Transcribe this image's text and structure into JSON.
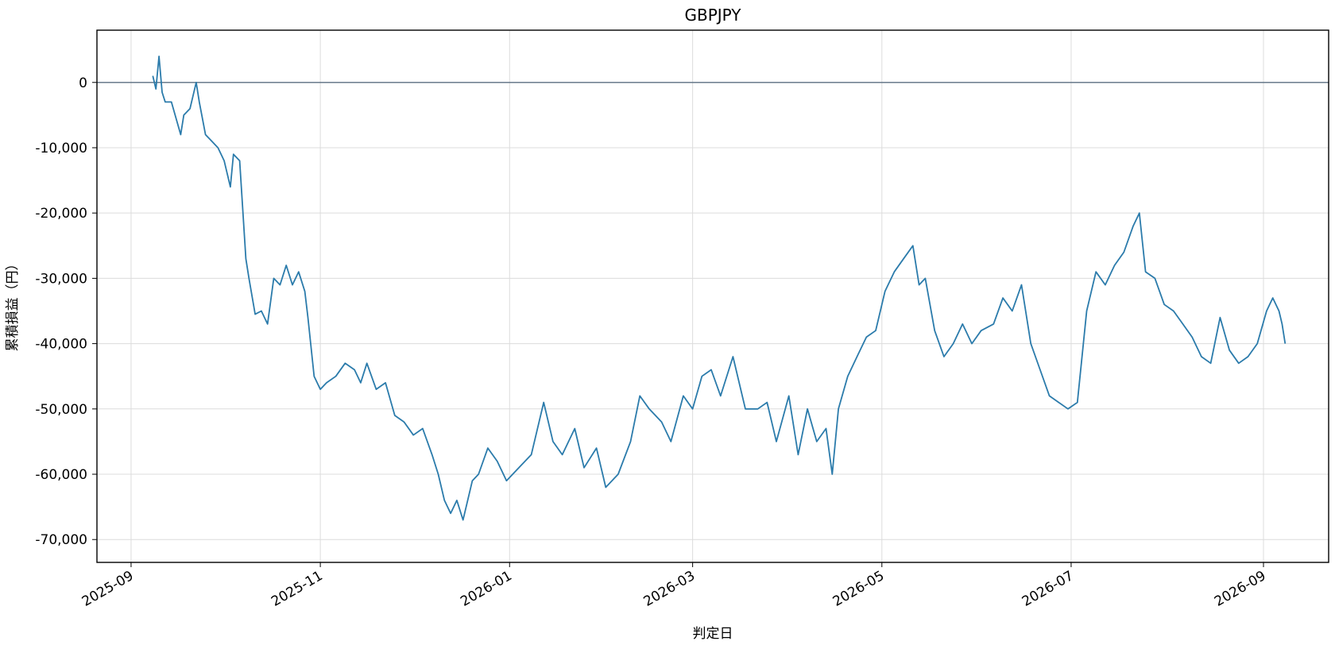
{
  "chart_data": {
    "type": "line",
    "title": "GBPJPY",
    "xlabel": "判定日",
    "ylabel": "累積損益（円）",
    "x_range": [
      "2025-08-21",
      "2026-09-22"
    ],
    "ylim": [
      -73500,
      8000
    ],
    "x_ticks": [
      "2025-09",
      "2025-11",
      "2026-01",
      "2026-03",
      "2026-05",
      "2026-07",
      "2026-09"
    ],
    "y_ticks": [
      0,
      -10000,
      -20000,
      -30000,
      -40000,
      -50000,
      -60000,
      -70000
    ],
    "y_tick_labels": [
      "0",
      "-10,000",
      "-20,000",
      "-30,000",
      "-40,000",
      "-50,000",
      "-60,000",
      "-70,000"
    ],
    "grid": true,
    "reference_line_y": 0,
    "colors": {
      "series": "#2b7bab",
      "zero_line": "#5b6f82",
      "grid": "#dcdcdc"
    },
    "series": [
      {
        "x": [
          "2025-09-08",
          "2025-09-09",
          "2025-09-10",
          "2025-09-11",
          "2025-09-12",
          "2025-09-14",
          "2025-09-17",
          "2025-09-18",
          "2025-09-20",
          "2025-09-22",
          "2025-09-23",
          "2025-09-25",
          "2025-09-27",
          "2025-09-29",
          "2025-10-01",
          "2025-10-03",
          "2025-10-04",
          "2025-10-06",
          "2025-10-08",
          "2025-10-09",
          "2025-10-11",
          "2025-10-13",
          "2025-10-15",
          "2025-10-17",
          "2025-10-19",
          "2025-10-21",
          "2025-10-23",
          "2025-10-25",
          "2025-10-27",
          "2025-10-28",
          "2025-10-30",
          "2025-11-01",
          "2025-11-03",
          "2025-11-06",
          "2025-11-09",
          "2025-11-12",
          "2025-11-14",
          "2025-11-16",
          "2025-11-19",
          "2025-11-22",
          "2025-11-25",
          "2025-11-28",
          "2025-12-01",
          "2025-12-04",
          "2025-12-07",
          "2025-12-09",
          "2025-12-11",
          "2025-12-13",
          "2025-12-15",
          "2025-12-17",
          "2025-12-20",
          "2025-12-22",
          "2025-12-25",
          "2025-12-28",
          "2025-12-31",
          "2026-01-04",
          "2026-01-08",
          "2026-01-12",
          "2026-01-15",
          "2026-01-18",
          "2026-01-22",
          "2026-01-25",
          "2026-01-29",
          "2026-02-01",
          "2026-02-05",
          "2026-02-09",
          "2026-02-12",
          "2026-02-15",
          "2026-02-19",
          "2026-02-22",
          "2026-02-26",
          "2026-03-01",
          "2026-03-04",
          "2026-03-07",
          "2026-03-10",
          "2026-03-14",
          "2026-03-18",
          "2026-03-22",
          "2026-03-25",
          "2026-03-28",
          "2026-04-01",
          "2026-04-04",
          "2026-04-07",
          "2026-04-10",
          "2026-04-13",
          "2026-04-15",
          "2026-04-17",
          "2026-04-20",
          "2026-04-23",
          "2026-04-26",
          "2026-04-29",
          "2026-05-02",
          "2026-05-05",
          "2026-05-08",
          "2026-05-11",
          "2026-05-13",
          "2026-05-15",
          "2026-05-18",
          "2026-05-21",
          "2026-05-24",
          "2026-05-27",
          "2026-05-30",
          "2026-06-02",
          "2026-06-06",
          "2026-06-09",
          "2026-06-12",
          "2026-06-15",
          "2026-06-18",
          "2026-06-21",
          "2026-06-24",
          "2026-06-27",
          "2026-06-30",
          "2026-07-03",
          "2026-07-06",
          "2026-07-09",
          "2026-07-12",
          "2026-07-15",
          "2026-07-18",
          "2026-07-21",
          "2026-07-23",
          "2026-07-25",
          "2026-07-28",
          "2026-07-31",
          "2026-08-03",
          "2026-08-06",
          "2026-08-09",
          "2026-08-12",
          "2026-08-15",
          "2026-08-18",
          "2026-08-21",
          "2026-08-24",
          "2026-08-27",
          "2026-08-30",
          "2026-09-02",
          "2026-09-04",
          "2026-09-06",
          "2026-09-07",
          "2026-09-08"
        ],
        "y": [
          1000,
          -1000,
          4000,
          -1500,
          -3000,
          -3000,
          -8000,
          -5000,
          -4000,
          0,
          -3000,
          -8000,
          -9000,
          -10000,
          -12000,
          -16000,
          -11000,
          -12000,
          -27000,
          -30000,
          -35500,
          -35000,
          -37000,
          -30000,
          -31000,
          -28000,
          -31000,
          -29000,
          -32000,
          -36000,
          -45000,
          -47000,
          -46000,
          -45000,
          -43000,
          -44000,
          -46000,
          -43000,
          -47000,
          -46000,
          -51000,
          -52000,
          -54000,
          -53000,
          -57000,
          -60000,
          -64000,
          -66000,
          -64000,
          -67000,
          -61000,
          -60000,
          -56000,
          -58000,
          -61000,
          -59000,
          -57000,
          -49000,
          -55000,
          -57000,
          -53000,
          -59000,
          -56000,
          -62000,
          -60000,
          -55000,
          -48000,
          -50000,
          -52000,
          -55000,
          -48000,
          -50000,
          -45000,
          -44000,
          -48000,
          -42000,
          -50000,
          -50000,
          -49000,
          -55000,
          -48000,
          -57000,
          -50000,
          -55000,
          -53000,
          -60000,
          -50000,
          -45000,
          -42000,
          -39000,
          -38000,
          -32000,
          -29000,
          -27000,
          -25000,
          -31000,
          -30000,
          -38000,
          -42000,
          -40000,
          -37000,
          -40000,
          -38000,
          -37000,
          -33000,
          -35000,
          -31000,
          -40000,
          -44000,
          -48000,
          -49000,
          -50000,
          -49000,
          -35000,
          -29000,
          -31000,
          -28000,
          -26000,
          -22000,
          -20000,
          -29000,
          -30000,
          -34000,
          -35000,
          -37000,
          -39000,
          -42000,
          -43000,
          -36000,
          -41000,
          -43000,
          -42000,
          -40000,
          -35000,
          -33000,
          -35000,
          -37000,
          -40000
        ]
      }
    ]
  }
}
